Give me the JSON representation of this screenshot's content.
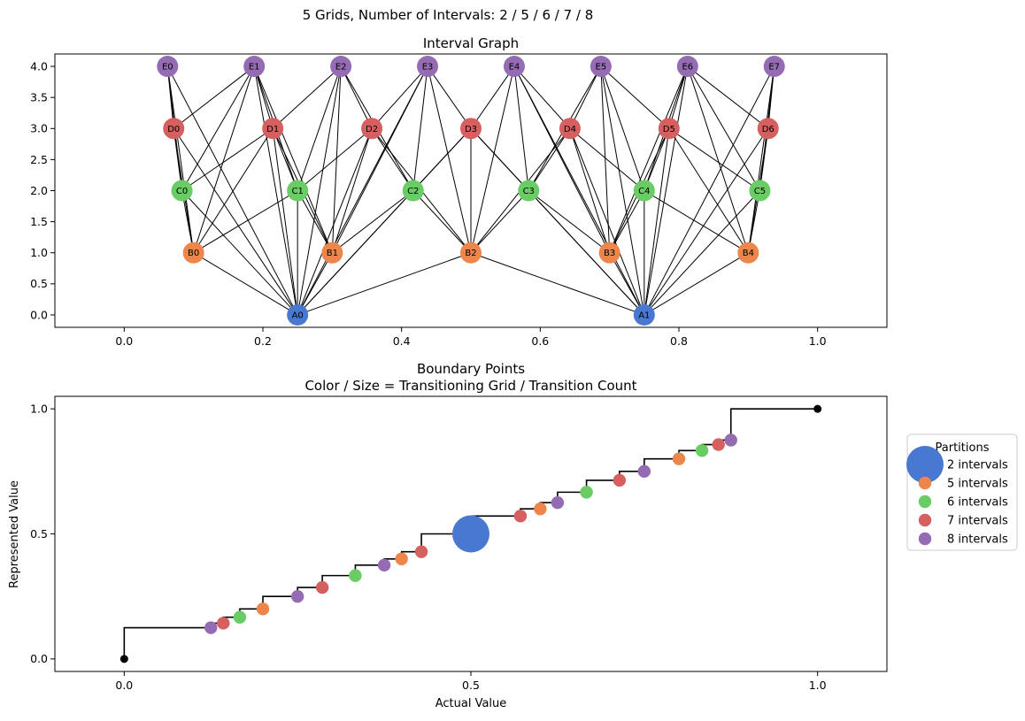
{
  "figure": {
    "suptitle": "5 Grids, Number of Intervals: 2 / 5 / 6 / 7 / 8"
  },
  "chart_data": [
    {
      "type": "network",
      "title": "Interval Graph",
      "xlim": [
        -0.1,
        1.1
      ],
      "ylim": [
        -0.2,
        4.2
      ],
      "x_ticks": [
        0.0,
        0.2,
        0.4,
        0.6,
        0.8,
        1.0
      ],
      "y_ticks": [
        0.0,
        0.5,
        1.0,
        1.5,
        2.0,
        2.5,
        3.0,
        3.5,
        4.0
      ],
      "layer_colors": {
        "A": "#4878cf",
        "B": "#ee854a",
        "C": "#6acc64",
        "D": "#d65f5f",
        "E": "#956cb4"
      },
      "nodes": [
        {
          "id": "A0",
          "x": 0.25,
          "y": 0
        },
        {
          "id": "A1",
          "x": 0.75,
          "y": 0
        },
        {
          "id": "B0",
          "x": 0.1,
          "y": 1
        },
        {
          "id": "B1",
          "x": 0.3,
          "y": 1
        },
        {
          "id": "B2",
          "x": 0.5,
          "y": 1
        },
        {
          "id": "B3",
          "x": 0.7,
          "y": 1
        },
        {
          "id": "B4",
          "x": 0.9,
          "y": 1
        },
        {
          "id": "C0",
          "x": 0.0833,
          "y": 2
        },
        {
          "id": "C1",
          "x": 0.25,
          "y": 2
        },
        {
          "id": "C2",
          "x": 0.4167,
          "y": 2
        },
        {
          "id": "C3",
          "x": 0.5833,
          "y": 2
        },
        {
          "id": "C4",
          "x": 0.75,
          "y": 2
        },
        {
          "id": "C5",
          "x": 0.9167,
          "y": 2
        },
        {
          "id": "D0",
          "x": 0.0714,
          "y": 3
        },
        {
          "id": "D1",
          "x": 0.2143,
          "y": 3
        },
        {
          "id": "D2",
          "x": 0.3571,
          "y": 3
        },
        {
          "id": "D3",
          "x": 0.5,
          "y": 3
        },
        {
          "id": "D4",
          "x": 0.6429,
          "y": 3
        },
        {
          "id": "D5",
          "x": 0.7857,
          "y": 3
        },
        {
          "id": "D6",
          "x": 0.9286,
          "y": 3
        },
        {
          "id": "E0",
          "x": 0.0625,
          "y": 4
        },
        {
          "id": "E1",
          "x": 0.1875,
          "y": 4
        },
        {
          "id": "E2",
          "x": 0.3125,
          "y": 4
        },
        {
          "id": "E3",
          "x": 0.4375,
          "y": 4
        },
        {
          "id": "E4",
          "x": 0.5625,
          "y": 4
        },
        {
          "id": "E5",
          "x": 0.6875,
          "y": 4
        },
        {
          "id": "E6",
          "x": 0.8125,
          "y": 4
        },
        {
          "id": "E7",
          "x": 0.9375,
          "y": 4
        }
      ]
    },
    {
      "type": "scatter",
      "title": "Boundary Points",
      "subtitle": "Color / Size = Transitioning Grid / Transition Count",
      "xlabel": "Actual Value",
      "ylabel": "Represented Value",
      "xlim": [
        -0.1,
        1.1
      ],
      "ylim": [
        -0.05,
        1.05
      ],
      "x_ticks": [
        "0.0",
        "0.5",
        "1.0"
      ],
      "y_ticks": [
        "0.0",
        "0.5",
        "1.0"
      ],
      "step_line": [
        [
          0,
          0
        ],
        [
          0,
          0.125
        ],
        [
          0.125,
          0.125
        ],
        [
          0.125,
          0.1429
        ],
        [
          0.1429,
          0.1429
        ],
        [
          0.1429,
          0.1667
        ],
        [
          0.1667,
          0.1667
        ],
        [
          0.1667,
          0.2
        ],
        [
          0.2,
          0.2
        ],
        [
          0.2,
          0.25
        ],
        [
          0.25,
          0.25
        ],
        [
          0.25,
          0.2857
        ],
        [
          0.2857,
          0.2857
        ],
        [
          0.2857,
          0.3333
        ],
        [
          0.3333,
          0.3333
        ],
        [
          0.3333,
          0.375
        ],
        [
          0.375,
          0.375
        ],
        [
          0.375,
          0.4
        ],
        [
          0.4,
          0.4
        ],
        [
          0.4,
          0.4286
        ],
        [
          0.4286,
          0.4286
        ],
        [
          0.4286,
          0.5
        ],
        [
          0.5,
          0.5
        ],
        [
          0.5,
          0.5714
        ],
        [
          0.5714,
          0.5714
        ],
        [
          0.5714,
          0.6
        ],
        [
          0.6,
          0.6
        ],
        [
          0.6,
          0.625
        ],
        [
          0.625,
          0.625
        ],
        [
          0.625,
          0.6667
        ],
        [
          0.6667,
          0.6667
        ],
        [
          0.6667,
          0.7143
        ],
        [
          0.7143,
          0.7143
        ],
        [
          0.7143,
          0.75
        ],
        [
          0.75,
          0.75
        ],
        [
          0.75,
          0.8
        ],
        [
          0.8,
          0.8
        ],
        [
          0.8,
          0.8333
        ],
        [
          0.8333,
          0.8333
        ],
        [
          0.8333,
          0.8571
        ],
        [
          0.8571,
          0.8571
        ],
        [
          0.8571,
          0.875
        ],
        [
          0.875,
          0.875
        ],
        [
          0.875,
          1.0
        ],
        [
          1.0,
          1.0
        ]
      ],
      "endpoints": [
        [
          0,
          0
        ],
        [
          1.0,
          1.0
        ]
      ],
      "legend": {
        "title": "Partitions",
        "placement": "right, outside",
        "entries": [
          {
            "label": "2 intervals",
            "color": "#4878cf",
            "count": 3
          },
          {
            "label": "5 intervals",
            "color": "#ee854a",
            "count": 1
          },
          {
            "label": "6 intervals",
            "color": "#6acc64",
            "count": 1
          },
          {
            "label": "7 intervals",
            "color": "#d65f5f",
            "count": 1
          },
          {
            "label": "8 intervals",
            "color": "#956cb4",
            "count": 1
          }
        ]
      },
      "points": [
        {
          "x": 0.125,
          "y": 0.125,
          "grid": "8 intervals",
          "count": 1
        },
        {
          "x": 0.1429,
          "y": 0.1429,
          "grid": "7 intervals",
          "count": 1
        },
        {
          "x": 0.1667,
          "y": 0.1667,
          "grid": "6 intervals",
          "count": 1
        },
        {
          "x": 0.2,
          "y": 0.2,
          "grid": "5 intervals",
          "count": 1
        },
        {
          "x": 0.25,
          "y": 0.25,
          "grid": "8 intervals",
          "count": 1
        },
        {
          "x": 0.2857,
          "y": 0.2857,
          "grid": "7 intervals",
          "count": 1
        },
        {
          "x": 0.3333,
          "y": 0.3333,
          "grid": "6 intervals",
          "count": 1
        },
        {
          "x": 0.375,
          "y": 0.375,
          "grid": "8 intervals",
          "count": 1
        },
        {
          "x": 0.4,
          "y": 0.4,
          "grid": "5 intervals",
          "count": 1
        },
        {
          "x": 0.4286,
          "y": 0.4286,
          "grid": "7 intervals",
          "count": 1
        },
        {
          "x": 0.5,
          "y": 0.5,
          "grid": "2 intervals",
          "count": 5
        },
        {
          "x": 0.5714,
          "y": 0.5714,
          "grid": "7 intervals",
          "count": 1
        },
        {
          "x": 0.6,
          "y": 0.6,
          "grid": "5 intervals",
          "count": 1
        },
        {
          "x": 0.625,
          "y": 0.625,
          "grid": "8 intervals",
          "count": 1
        },
        {
          "x": 0.6667,
          "y": 0.6667,
          "grid": "6 intervals",
          "count": 1
        },
        {
          "x": 0.7143,
          "y": 0.7143,
          "grid": "7 intervals",
          "count": 1
        },
        {
          "x": 0.75,
          "y": 0.75,
          "grid": "8 intervals",
          "count": 1
        },
        {
          "x": 0.8,
          "y": 0.8,
          "grid": "5 intervals",
          "count": 1
        },
        {
          "x": 0.8333,
          "y": 0.8333,
          "grid": "6 intervals",
          "count": 1
        },
        {
          "x": 0.8571,
          "y": 0.8571,
          "grid": "7 intervals",
          "count": 1
        },
        {
          "x": 0.875,
          "y": 0.875,
          "grid": "8 intervals",
          "count": 1
        }
      ]
    }
  ]
}
